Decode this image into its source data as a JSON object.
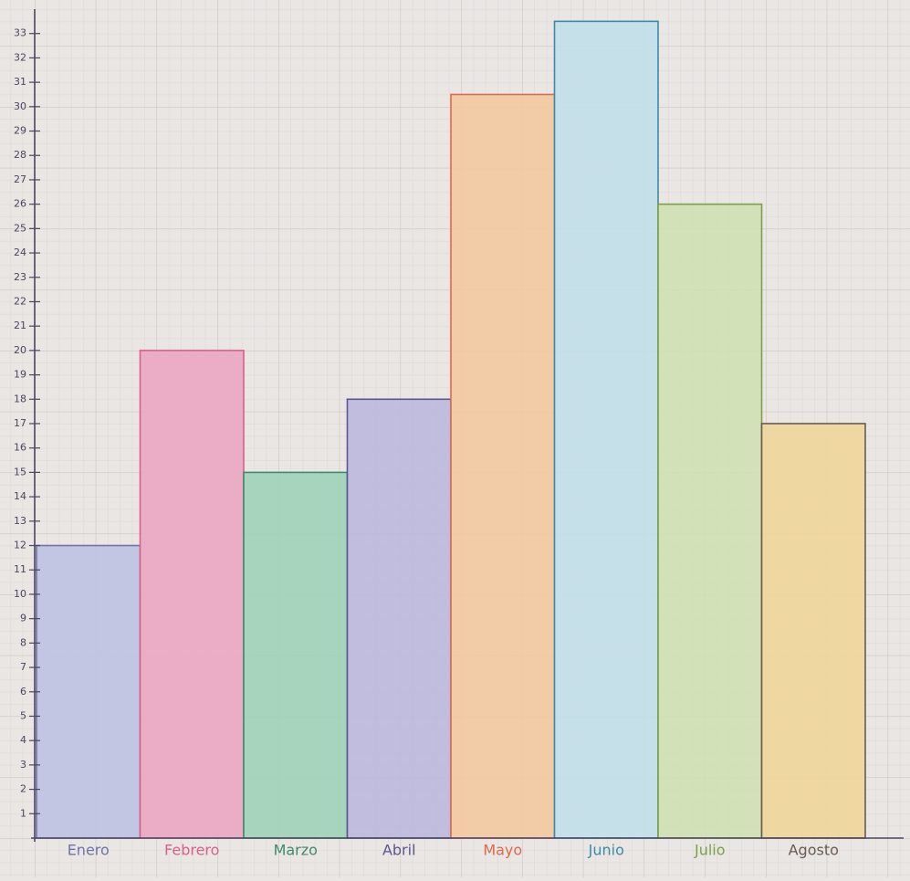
{
  "chart_data": {
    "type": "bar",
    "categories": [
      "Enero",
      "Febrero",
      "Marzo",
      "Abril",
      "Mayo",
      "Junio",
      "Julio",
      "Agosto"
    ],
    "values": [
      12,
      20,
      15,
      18,
      30.5,
      33.5,
      26,
      17
    ],
    "colors": [
      "#bfc2e2",
      "#eba6c2",
      "#9fd2b8",
      "#bcb8de",
      "#f2c9a0",
      "#c2dfea",
      "#cfe0b2",
      "#f0d59a"
    ],
    "edge_colors": [
      "#6f73a8",
      "#d9608a",
      "#3f8a6a",
      "#5b5590",
      "#e06a4a",
      "#3c8aa8",
      "#7ca048",
      "#6a5a50"
    ],
    "ylim": [
      0,
      34
    ],
    "yticks": [
      1,
      2,
      3,
      4,
      5,
      6,
      7,
      8,
      9,
      10,
      11,
      12,
      13,
      14,
      15,
      16,
      17,
      18,
      19,
      20,
      21,
      22,
      23,
      24,
      25,
      26,
      27,
      28,
      29,
      30,
      31,
      32,
      33
    ],
    "grid": false
  }
}
